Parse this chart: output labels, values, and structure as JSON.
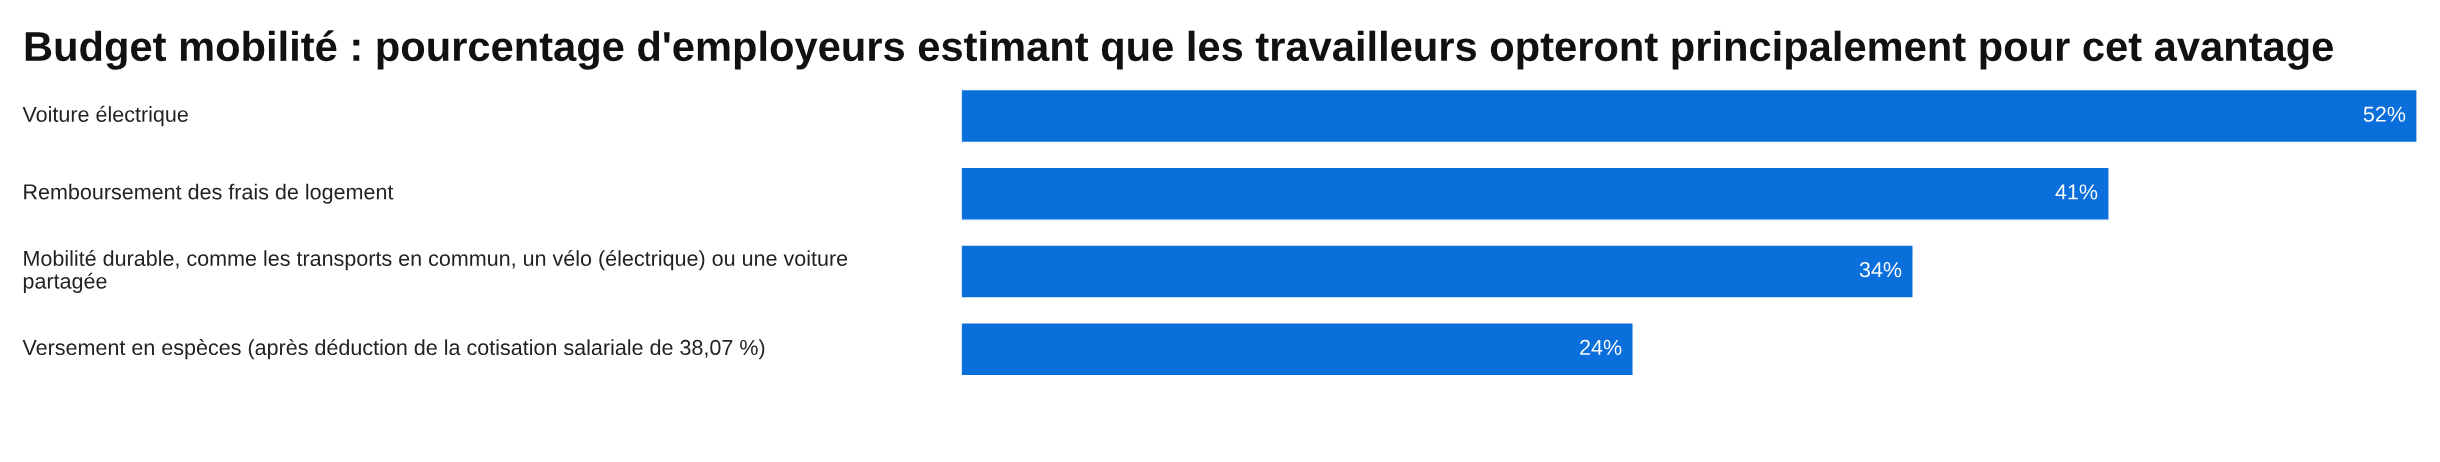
{
  "chart_data": {
    "type": "bar",
    "orientation": "horizontal",
    "title": "Budget mobilité : pourcentage d'employeurs estimant que les travailleurs opteront principalement pour cet avantage",
    "categories": [
      "Voiture électrique",
      "Remboursement des frais de logement",
      "Mobilité durable, comme les transports en commun, un vélo (électrique) ou une voiture\npartagée",
      "Versement en espèces (après déduction de la cotisation salariale de 38,07 %)"
    ],
    "values": [
      52,
      41,
      34,
      24
    ],
    "value_labels": [
      "52%",
      "41%",
      "34%",
      "24%"
    ],
    "color": "#0a6edb",
    "xlim": [
      0,
      52
    ],
    "tick_labels": "y",
    "grid": false,
    "legend": false
  }
}
